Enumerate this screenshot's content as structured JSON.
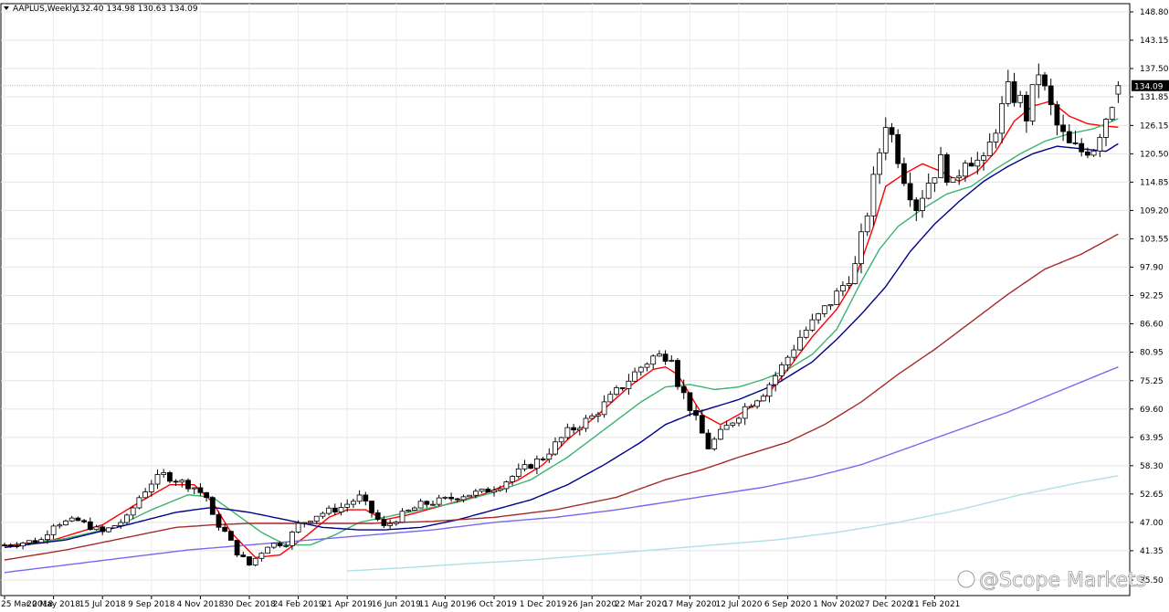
{
  "header": {
    "symbol": "AAPLUS,Weekly",
    "ohlc": "132.40 134.98 130.63 134.09"
  },
  "watermark": "@Scope Markets",
  "chart_data": {
    "type": "candlestick",
    "symbol": "AAPLUS",
    "timeframe": "Weekly",
    "last_price": "134.09",
    "ylim": [
      35.5,
      148.8
    ],
    "y_ticks": [
      "148.80",
      "143.15",
      "137.50",
      "131.85",
      "126.15",
      "120.50",
      "114.85",
      "109.20",
      "103.55",
      "97.90",
      "92.25",
      "86.60",
      "80.95",
      "75.25",
      "69.60",
      "63.95",
      "58.30",
      "52.65",
      "47.00",
      "41.35",
      "35.50"
    ],
    "x_ticks": [
      "25 Mar 2018",
      "20 May 2018",
      "15 Jul 2018",
      "9 Sep 2018",
      "4 Nov 2018",
      "30 Dec 2018",
      "24 Feb 2019",
      "21 Apr 2019",
      "16 Jun 2019",
      "11 Aug 2019",
      "6 Oct 2019",
      "1 Dec 2019",
      "26 Jan 2020",
      "22 Mar 2020",
      "17 May 2020",
      "12 Jul 2020",
      "6 Sep 2020",
      "1 Nov 2020",
      "27 Dec 2020",
      "21 Feb 2021"
    ],
    "close_path": [
      [
        0,
        42.5
      ],
      [
        6,
        43.5
      ],
      [
        8,
        46.8
      ],
      [
        12,
        47.3
      ],
      [
        16,
        45.0
      ],
      [
        20,
        47.8
      ],
      [
        22,
        52.0
      ],
      [
        24,
        55.0
      ],
      [
        26,
        56.5
      ],
      [
        29,
        55.0
      ],
      [
        31,
        54.0
      ],
      [
        33,
        52.0
      ],
      [
        34,
        48.0
      ],
      [
        36,
        45.0
      ],
      [
        38,
        41.0
      ],
      [
        40,
        38.5
      ],
      [
        43,
        42.5
      ],
      [
        46,
        43.0
      ],
      [
        48,
        46.5
      ],
      [
        51,
        48.5
      ],
      [
        55,
        50.0
      ],
      [
        58,
        52.0
      ],
      [
        60,
        49.0
      ],
      [
        62,
        46.0
      ],
      [
        65,
        48.5
      ],
      [
        68,
        50.5
      ],
      [
        72,
        51.5
      ],
      [
        75,
        52.5
      ],
      [
        78,
        53.0
      ],
      [
        81,
        54.5
      ],
      [
        84,
        57.0
      ],
      [
        88,
        60.0
      ],
      [
        92,
        65.0
      ],
      [
        96,
        68.0
      ],
      [
        100,
        73.0
      ],
      [
        104,
        78.0
      ],
      [
        106,
        80.0
      ],
      [
        109,
        80.5
      ],
      [
        110,
        75.0
      ],
      [
        112,
        70.0
      ],
      [
        115,
        62.0
      ],
      [
        118,
        66.0
      ],
      [
        121,
        70.0
      ],
      [
        124,
        73.0
      ],
      [
        127,
        78.0
      ],
      [
        130,
        84.0
      ],
      [
        133,
        88.0
      ],
      [
        136,
        92.5
      ],
      [
        138,
        96.0
      ],
      [
        139,
        98.0
      ],
      [
        141,
        109.0
      ],
      [
        143,
        121.0
      ],
      [
        144,
        127.0
      ],
      [
        145,
        124.0
      ],
      [
        147,
        116.0
      ],
      [
        149,
        110.0
      ],
      [
        151,
        115.0
      ],
      [
        153,
        119.0
      ],
      [
        155,
        114.0
      ],
      [
        157,
        120.0
      ],
      [
        160,
        118.5
      ],
      [
        162,
        126.0
      ],
      [
        164,
        133.0
      ],
      [
        166,
        131.0
      ],
      [
        167,
        128.0
      ],
      [
        169,
        137.0
      ],
      [
        170,
        133.0
      ],
      [
        172,
        126.0
      ],
      [
        174,
        122.0
      ],
      [
        176,
        121.0
      ],
      [
        178,
        122.0
      ],
      [
        181,
        131.0
      ],
      [
        182,
        134.09
      ]
    ],
    "series": [
      {
        "color": "#ff0000",
        "points": [
          [
            0,
            42.3
          ],
          [
            8,
            43.5
          ],
          [
            16,
            46.5
          ],
          [
            22,
            51.0
          ],
          [
            27,
            54.5
          ],
          [
            31,
            54.5
          ],
          [
            34,
            51.0
          ],
          [
            37,
            45.0
          ],
          [
            41,
            40.0
          ],
          [
            45,
            40.5
          ],
          [
            49,
            44.0
          ],
          [
            53,
            48.0
          ],
          [
            56,
            49.5
          ],
          [
            59,
            49.5
          ],
          [
            62,
            47.5
          ],
          [
            66,
            48.5
          ],
          [
            72,
            50.5
          ],
          [
            78,
            52.5
          ],
          [
            84,
            55.5
          ],
          [
            88,
            58.5
          ],
          [
            92,
            63.5
          ],
          [
            97,
            68.5
          ],
          [
            102,
            74.0
          ],
          [
            106,
            77.5
          ],
          [
            108,
            78.0
          ],
          [
            110,
            76.5
          ],
          [
            112,
            72.5
          ],
          [
            114,
            68.5
          ],
          [
            117,
            66.5
          ],
          [
            120,
            68.5
          ],
          [
            124,
            71.5
          ],
          [
            128,
            77.5
          ],
          [
            132,
            84.0
          ],
          [
            136,
            89.5
          ],
          [
            139,
            95.5
          ],
          [
            142,
            106.0
          ],
          [
            144,
            114.0
          ],
          [
            147,
            116.5
          ],
          [
            150,
            118.5
          ],
          [
            153,
            117.0
          ],
          [
            156,
            115.0
          ],
          [
            159,
            117.0
          ],
          [
            162,
            121.0
          ],
          [
            165,
            127.0
          ],
          [
            168,
            130.0
          ],
          [
            171,
            131.0
          ],
          [
            174,
            128.0
          ],
          [
            177,
            126.5
          ],
          [
            180,
            126.0
          ],
          [
            182,
            125.8
          ]
        ]
      },
      {
        "color": "#3cb371",
        "points": [
          [
            0,
            42.0
          ],
          [
            10,
            43.8
          ],
          [
            18,
            46.0
          ],
          [
            24,
            49.5
          ],
          [
            30,
            52.5
          ],
          [
            34,
            52.0
          ],
          [
            38,
            48.5
          ],
          [
            42,
            45.0
          ],
          [
            46,
            42.5
          ],
          [
            50,
            42.5
          ],
          [
            54,
            44.5
          ],
          [
            58,
            47.0
          ],
          [
            62,
            48.0
          ],
          [
            68,
            49.5
          ],
          [
            74,
            51.0
          ],
          [
            80,
            53.0
          ],
          [
            86,
            55.5
          ],
          [
            92,
            60.0
          ],
          [
            98,
            65.5
          ],
          [
            104,
            71.0
          ],
          [
            108,
            74.0
          ],
          [
            112,
            74.5
          ],
          [
            116,
            73.5
          ],
          [
            120,
            74.0
          ],
          [
            124,
            75.5
          ],
          [
            128,
            77.5
          ],
          [
            132,
            80.5
          ],
          [
            136,
            85.5
          ],
          [
            140,
            95.0
          ],
          [
            143,
            101.5
          ],
          [
            146,
            106.0
          ],
          [
            150,
            109.5
          ],
          [
            154,
            112.5
          ],
          [
            158,
            114.0
          ],
          [
            162,
            117.5
          ],
          [
            166,
            120.5
          ],
          [
            170,
            123.0
          ],
          [
            174,
            124.5
          ],
          [
            178,
            125.5
          ],
          [
            182,
            127.5
          ]
        ]
      },
      {
        "color": "#00008b",
        "points": [
          [
            0,
            42.0
          ],
          [
            10,
            43.5
          ],
          [
            20,
            46.5
          ],
          [
            28,
            49.0
          ],
          [
            34,
            50.0
          ],
          [
            40,
            49.0
          ],
          [
            46,
            47.5
          ],
          [
            52,
            46.0
          ],
          [
            58,
            45.5
          ],
          [
            62,
            45.5
          ],
          [
            68,
            46.0
          ],
          [
            74,
            47.5
          ],
          [
            80,
            49.5
          ],
          [
            86,
            51.5
          ],
          [
            92,
            54.5
          ],
          [
            98,
            58.5
          ],
          [
            104,
            63.0
          ],
          [
            108,
            66.5
          ],
          [
            112,
            68.5
          ],
          [
            116,
            70.0
          ],
          [
            120,
            71.5
          ],
          [
            126,
            74.5
          ],
          [
            132,
            79.0
          ],
          [
            136,
            83.5
          ],
          [
            140,
            88.5
          ],
          [
            144,
            94.0
          ],
          [
            148,
            101.0
          ],
          [
            152,
            106.5
          ],
          [
            156,
            111.0
          ],
          [
            160,
            115.0
          ],
          [
            164,
            118.0
          ],
          [
            168,
            120.5
          ],
          [
            172,
            122.0
          ],
          [
            176,
            121.5
          ],
          [
            180,
            121.0
          ],
          [
            182,
            122.5
          ]
        ]
      },
      {
        "color": "#a52a2a",
        "points": [
          [
            0,
            39.5
          ],
          [
            10,
            41.5
          ],
          [
            20,
            44.0
          ],
          [
            28,
            46.0
          ],
          [
            34,
            46.5
          ],
          [
            40,
            46.8
          ],
          [
            50,
            46.8
          ],
          [
            60,
            46.8
          ],
          [
            70,
            47.2
          ],
          [
            80,
            48.0
          ],
          [
            90,
            49.5
          ],
          [
            100,
            52.0
          ],
          [
            108,
            55.5
          ],
          [
            114,
            57.5
          ],
          [
            120,
            60.0
          ],
          [
            128,
            63.0
          ],
          [
            134,
            66.5
          ],
          [
            140,
            71.0
          ],
          [
            146,
            76.5
          ],
          [
            152,
            81.5
          ],
          [
            158,
            87.0
          ],
          [
            164,
            92.5
          ],
          [
            170,
            97.5
          ],
          [
            176,
            100.5
          ],
          [
            182,
            104.5
          ]
        ]
      },
      {
        "color": "#7b68ee",
        "points": [
          [
            0,
            37.0
          ],
          [
            10,
            38.5
          ],
          [
            20,
            40.0
          ],
          [
            30,
            41.5
          ],
          [
            40,
            42.5
          ],
          [
            50,
            43.5
          ],
          [
            60,
            44.5
          ],
          [
            70,
            45.5
          ],
          [
            80,
            47.0
          ],
          [
            90,
            48.0
          ],
          [
            100,
            49.5
          ],
          [
            108,
            51.0
          ],
          [
            116,
            52.5
          ],
          [
            124,
            54.0
          ],
          [
            132,
            56.0
          ],
          [
            140,
            58.5
          ],
          [
            148,
            62.0
          ],
          [
            156,
            65.5
          ],
          [
            164,
            69.0
          ],
          [
            172,
            73.0
          ],
          [
            178,
            76.0
          ],
          [
            182,
            78.0
          ]
        ]
      },
      {
        "color": "#b0e0e6",
        "points": [
          [
            56,
            37.3
          ],
          [
            66,
            38.0
          ],
          [
            76,
            38.8
          ],
          [
            86,
            39.5
          ],
          [
            96,
            40.5
          ],
          [
            106,
            41.5
          ],
          [
            116,
            42.5
          ],
          [
            126,
            43.5
          ],
          [
            136,
            45.0
          ],
          [
            146,
            47.0
          ],
          [
            156,
            49.5
          ],
          [
            166,
            52.5
          ],
          [
            176,
            55.0
          ],
          [
            182,
            56.3
          ]
        ]
      }
    ]
  }
}
